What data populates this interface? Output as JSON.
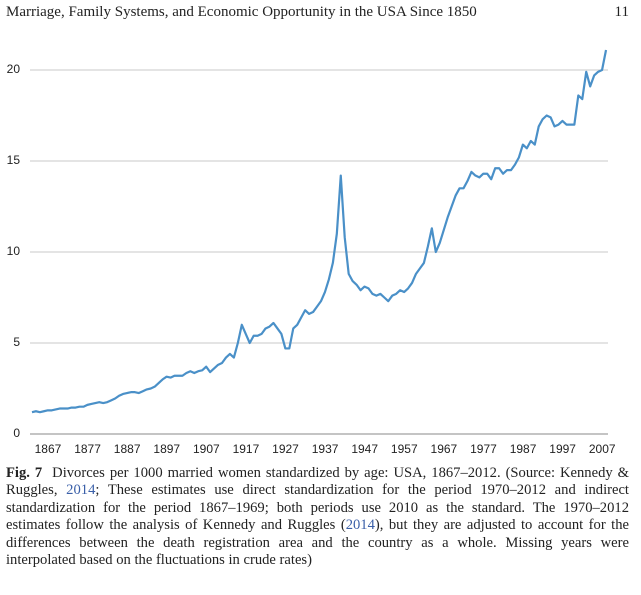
{
  "header": {
    "running_title": "Marriage, Family Systems, and Economic Opportunity in the USA Since 1850",
    "page_number": "11"
  },
  "chart_data": {
    "type": "line",
    "x": [
      1867,
      1868,
      1869,
      1870,
      1871,
      1872,
      1873,
      1874,
      1875,
      1876,
      1877,
      1878,
      1879,
      1880,
      1881,
      1882,
      1883,
      1884,
      1885,
      1886,
      1887,
      1888,
      1889,
      1890,
      1891,
      1892,
      1893,
      1894,
      1895,
      1896,
      1897,
      1898,
      1899,
      1900,
      1901,
      1902,
      1903,
      1904,
      1905,
      1906,
      1907,
      1908,
      1909,
      1910,
      1911,
      1912,
      1913,
      1914,
      1915,
      1916,
      1917,
      1918,
      1919,
      1920,
      1921,
      1922,
      1923,
      1924,
      1925,
      1926,
      1927,
      1928,
      1929,
      1930,
      1931,
      1932,
      1933,
      1934,
      1935,
      1936,
      1937,
      1938,
      1939,
      1940,
      1941,
      1942,
      1943,
      1944,
      1945,
      1946,
      1947,
      1948,
      1949,
      1950,
      1951,
      1952,
      1953,
      1954,
      1955,
      1956,
      1957,
      1958,
      1959,
      1960,
      1961,
      1962,
      1963,
      1964,
      1965,
      1966,
      1967,
      1968,
      1969,
      1970,
      1971,
      1972,
      1973,
      1974,
      1975,
      1976,
      1977,
      1978,
      1979,
      1980,
      1981,
      1982,
      1983,
      1984,
      1985,
      1986,
      1987,
      1988,
      1989,
      1990,
      1991,
      1992,
      1993,
      1994,
      1995,
      1996,
      1997,
      1998,
      1999,
      2000,
      2001,
      2002,
      2003,
      2004,
      2005,
      2006,
      2007,
      2008,
      2009,
      2010,
      2011,
      2012
    ],
    "series": [
      {
        "name": "Divorces per 1000 married women",
        "color": "#4a90c8",
        "values": [
          1.2,
          1.25,
          1.2,
          1.25,
          1.3,
          1.3,
          1.35,
          1.4,
          1.4,
          1.4,
          1.45,
          1.45,
          1.5,
          1.5,
          1.6,
          1.65,
          1.7,
          1.75,
          1.7,
          1.75,
          1.85,
          1.95,
          2.1,
          2.2,
          2.25,
          2.3,
          2.3,
          2.25,
          2.35,
          2.45,
          2.5,
          2.6,
          2.8,
          3.0,
          3.15,
          3.1,
          3.2,
          3.2,
          3.2,
          3.35,
          3.45,
          3.35,
          3.45,
          3.5,
          3.7,
          3.4,
          3.6,
          3.8,
          3.9,
          4.2,
          4.4,
          4.2,
          5.0,
          6.0,
          5.5,
          5.0,
          5.4,
          5.4,
          5.5,
          5.8,
          5.9,
          6.1,
          5.8,
          5.5,
          4.7,
          4.7,
          5.8,
          6.0,
          6.4,
          6.8,
          6.6,
          6.7,
          7.0,
          7.3,
          7.8,
          8.5,
          9.4,
          11.0,
          14.2,
          10.8,
          8.8,
          8.4,
          8.2,
          7.9,
          8.1,
          8.0,
          7.7,
          7.6,
          7.7,
          7.5,
          7.3,
          7.6,
          7.7,
          7.9,
          7.8,
          8.0,
          8.3,
          8.8,
          9.1,
          9.4,
          10.3,
          11.3,
          10.0,
          10.5,
          11.2,
          11.9,
          12.5,
          13.1,
          13.5,
          13.5,
          13.9,
          14.4,
          14.2,
          14.1,
          14.3,
          14.3,
          14.0,
          14.6,
          14.6,
          14.3,
          14.5,
          14.5,
          14.8,
          15.2,
          15.9,
          15.7,
          16.1,
          15.9,
          16.9,
          17.3,
          17.5,
          17.4,
          16.9,
          17.0,
          17.2,
          17.0,
          17.0,
          17.0,
          18.6,
          18.4,
          19.9,
          19.1,
          19.7,
          19.9,
          20.0,
          21.1
        ]
      }
    ],
    "xlim": [
      1866.5,
      2012.5
    ],
    "xticks": [
      1867,
      1877,
      1887,
      1897,
      1907,
      1917,
      1927,
      1937,
      1947,
      1957,
      1967,
      1977,
      1987,
      1997,
      2007
    ],
    "ylim": [
      0,
      22
    ],
    "yticks": [
      0,
      5,
      10,
      15,
      20
    ],
    "grid": true
  },
  "caption": {
    "label": "Fig. 7",
    "text_1": "Divorces per 1000 married women standardized by age: USA, 1867–2012. (Source: Kennedy & Ruggles, ",
    "link_1": "2014",
    "text_2": "; These estimates use direct standardization for the period 1970–2012 and indirect standardization for the period 1867–1969; both periods use 2010 as the standard. The 1970–2012 estimates follow the analysis of Kennedy and Ruggles (",
    "link_2": "2014",
    "text_3": "), but they are adjusted to account for the differences between the death registration area and the country as a whole. Missing years were interpolated based on the fluctuations in crude rates)"
  }
}
